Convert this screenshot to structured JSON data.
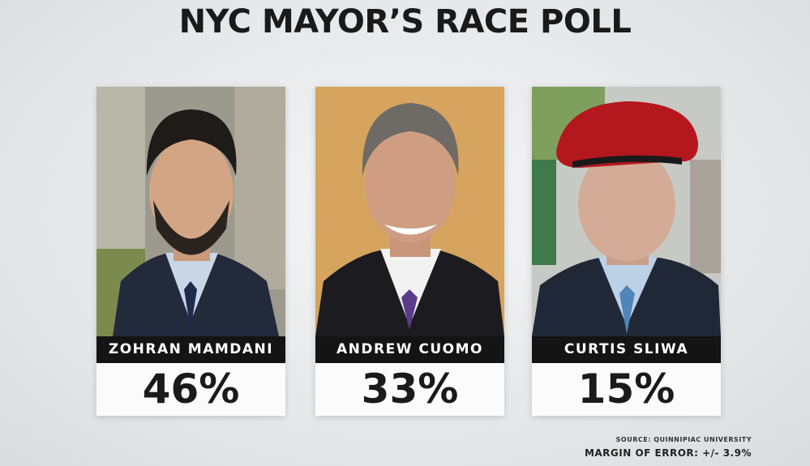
{
  "header": {
    "title": "NYC MAYOR’S RACE POLL"
  },
  "candidates": [
    {
      "name": "ZOHRAN MAMDANI",
      "result": "46%"
    },
    {
      "name": "ANDREW CUOMO",
      "result": "33%"
    },
    {
      "name": "CURTIS SLIWA",
      "result": "15%"
    }
  ],
  "footer": {
    "source": "SOURCE: QUINNIPIAC UNIVERSITY",
    "margin": "MARGIN OF ERROR: +/- 3.9%"
  }
}
